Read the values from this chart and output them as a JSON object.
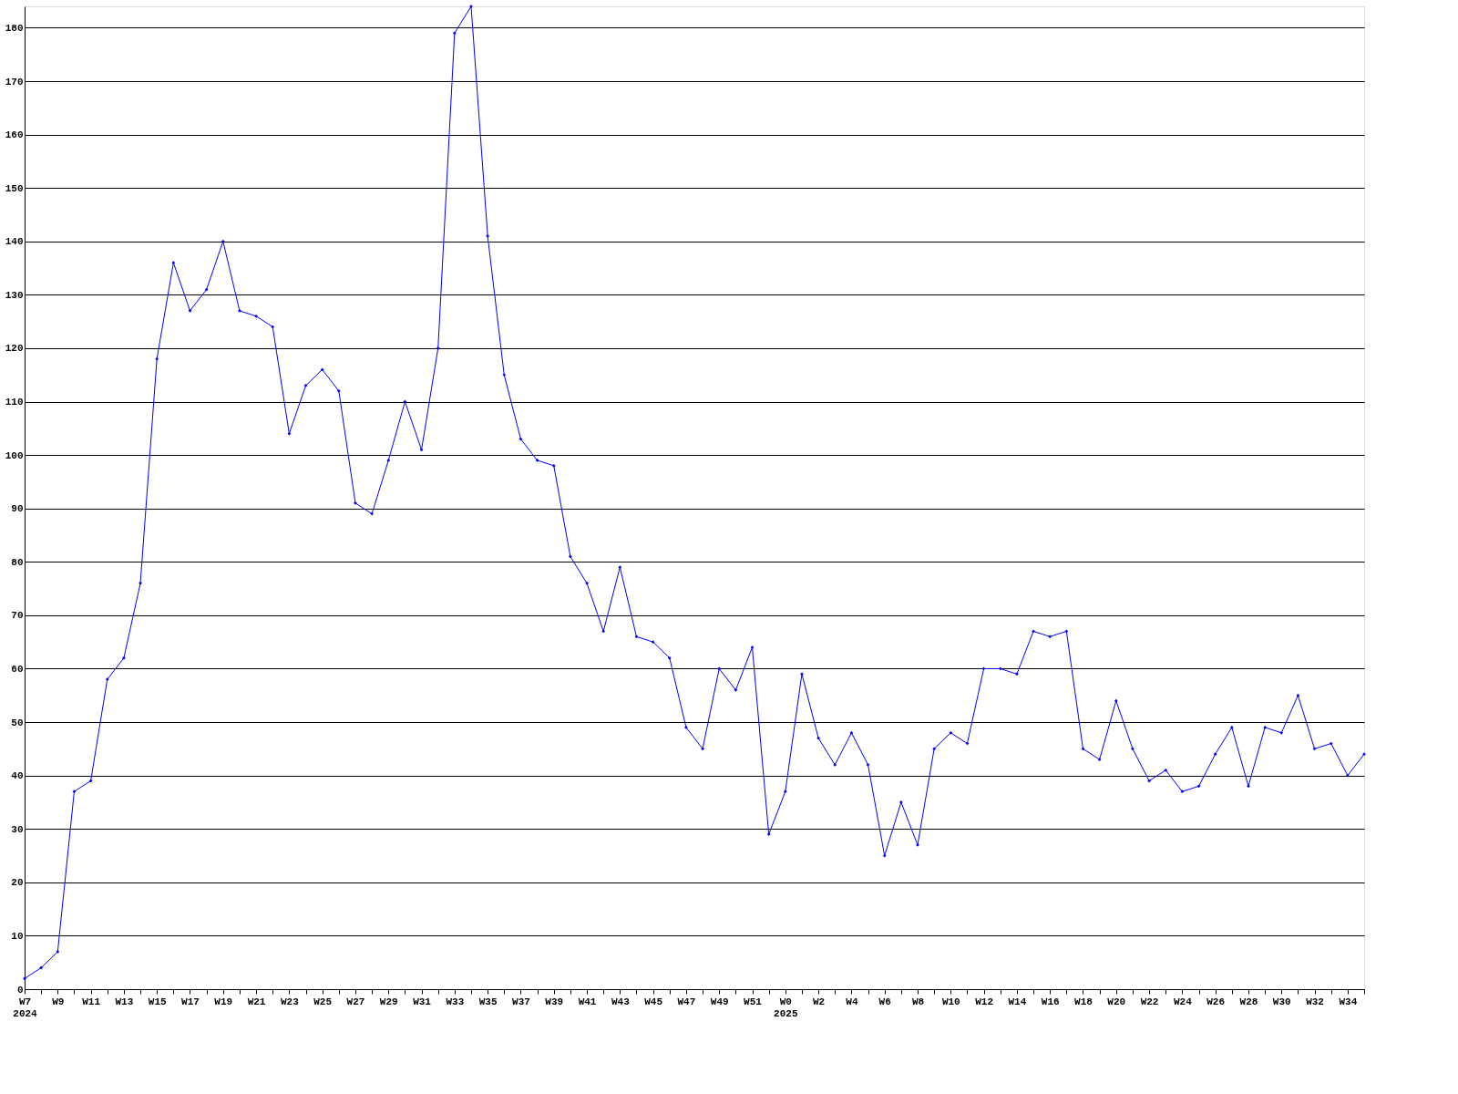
{
  "chart_data": {
    "type": "line",
    "categories": [
      "W7\n2024",
      null,
      "W9",
      null,
      "W11",
      null,
      "W13",
      null,
      "W15",
      null,
      "W17",
      null,
      "W19",
      null,
      "W21",
      null,
      "W23",
      null,
      "W25",
      null,
      "W27",
      null,
      "W29",
      null,
      "W31",
      null,
      "W33",
      null,
      "W35",
      null,
      "W37",
      null,
      "W39",
      null,
      "W41",
      null,
      "W43",
      null,
      "W45",
      null,
      "W47",
      null,
      "W49",
      null,
      "W51",
      null,
      "W0\n2025",
      null,
      "W2",
      null,
      "W4",
      null,
      "W6",
      null,
      "W8",
      null,
      "W10",
      null,
      "W12",
      null,
      "W14",
      null,
      "W16",
      null,
      "W18",
      null,
      "W20",
      null,
      "W22",
      null,
      "W24",
      null,
      "W26",
      null,
      "W28",
      null,
      "W30",
      null,
      "W32",
      null,
      "W34",
      null
    ],
    "series": [
      {
        "color": "#0000ff",
        "values": [
          2,
          4,
          7,
          37,
          39,
          58,
          62,
          76,
          118,
          136,
          127,
          131,
          140,
          127,
          126,
          124,
          104,
          113,
          116,
          112,
          91,
          89,
          99,
          110,
          101,
          120,
          179,
          184,
          141,
          115,
          103,
          99,
          98,
          81,
          76,
          67,
          79,
          66,
          65,
          62,
          49,
          45,
          60,
          56,
          64,
          29,
          37,
          59,
          47,
          42,
          48,
          42,
          25,
          35,
          27,
          45,
          48,
          46,
          60,
          60,
          59,
          67,
          66,
          67,
          45,
          43,
          54,
          45,
          39,
          41,
          37,
          38,
          44,
          49,
          38,
          49,
          48,
          55,
          45,
          46,
          40,
          44
        ]
      }
    ],
    "ylim": [
      0,
      184
    ],
    "yticks": [
      0,
      10,
      20,
      30,
      40,
      50,
      60,
      70,
      80,
      90,
      100,
      110,
      120,
      130,
      140,
      150,
      160,
      170,
      180
    ],
    "grid": "y",
    "marker": "diamond",
    "line_style": "solid"
  }
}
